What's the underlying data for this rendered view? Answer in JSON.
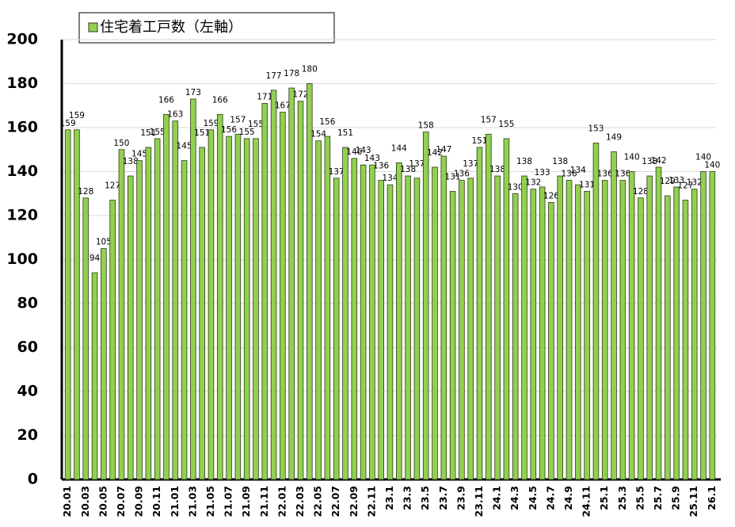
{
  "chart_data": {
    "type": "bar",
    "series": [
      {
        "name": "住宅着工戸数（左軸）",
        "color": "#92d050",
        "values": [
          159,
          159,
          128,
          94,
          105,
          127,
          150,
          138,
          145,
          151,
          155,
          166,
          163,
          145,
          173,
          151,
          159,
          166,
          156,
          157,
          155,
          155,
          171,
          177,
          167,
          178,
          172,
          180,
          154,
          156,
          137,
          151,
          146,
          143,
          143,
          136,
          134,
          144,
          138,
          137,
          158,
          142,
          147,
          131,
          136,
          137,
          151,
          157,
          138,
          155,
          130,
          138,
          132,
          133,
          126,
          138,
          136,
          134,
          131,
          153,
          136,
          149,
          136,
          140,
          128,
          138,
          142,
          129,
          133,
          127,
          132,
          140,
          140
        ]
      }
    ],
    "categories": [
      "20.01",
      null,
      "20.03",
      null,
      "20.05",
      null,
      "20.07",
      null,
      "20.09",
      null,
      "20.11",
      null,
      "21.01",
      null,
      "21.03",
      null,
      "21.05",
      null,
      "21.07",
      null,
      "21.09",
      null,
      "21.11",
      null,
      "22.01",
      null,
      "22.03",
      null,
      "22.05",
      null,
      "22.07",
      null,
      "22.09",
      null,
      "22.11",
      null,
      "23.1",
      null,
      "23.3",
      null,
      "23.5",
      null,
      "23.7",
      null,
      "23.9",
      null,
      "23.11",
      null,
      "24.1",
      null,
      "24.3",
      null,
      "24.5",
      null,
      "24.7",
      null,
      "24.9",
      null,
      "24.11",
      null,
      "25.1",
      null,
      "25.3",
      null,
      "25.5",
      null,
      "25.7",
      null,
      "25.9",
      null,
      "25.11",
      null,
      "26.1"
    ],
    "ylim": [
      0,
      200
    ],
    "yticks": [
      0,
      20,
      40,
      60,
      80,
      100,
      120,
      140,
      160,
      180,
      200
    ],
    "grid": true
  }
}
